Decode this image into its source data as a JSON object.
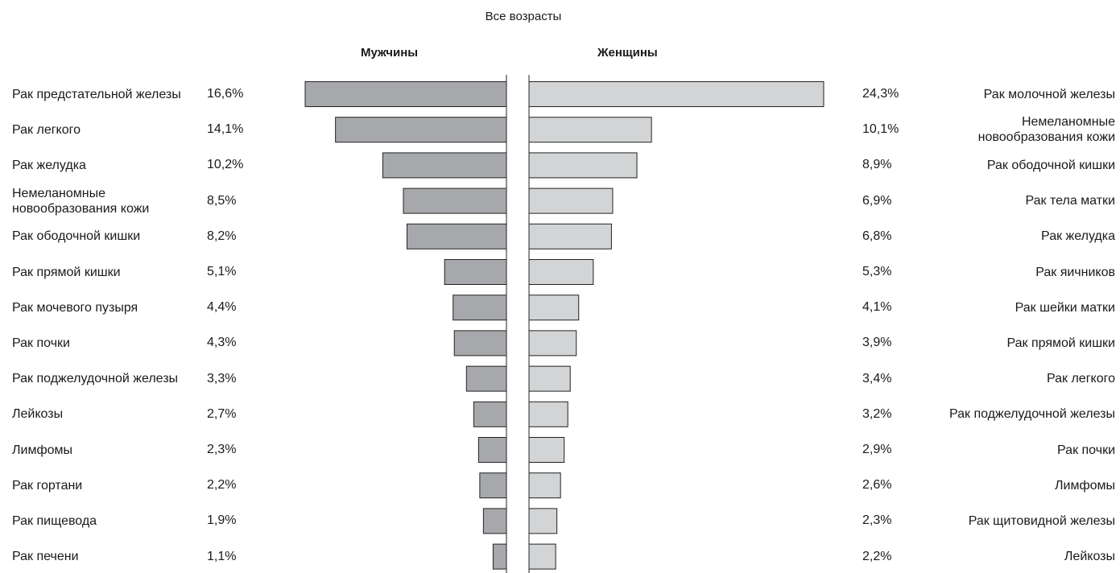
{
  "chart_data": {
    "type": "bar",
    "title": "Все возрасты",
    "series": [
      {
        "name": "Мужчины",
        "color": "#a7a8ab",
        "unit": "%",
        "categories": [
          "Рак предстательной железы",
          "Рак легкого",
          "Рак желудка",
          "Немеланомные новообразования кожи",
          "Рак ободочной кишки",
          "Рак прямой кишки",
          "Рак мочевого пузыря",
          "Рак почки",
          "Рак поджелудочной железы",
          "Лейкозы",
          "Лимфомы",
          "Рак гортани",
          "Рак пищевода",
          "Рак печени"
        ],
        "values": [
          16.6,
          14.1,
          10.2,
          8.5,
          8.2,
          5.1,
          4.4,
          4.3,
          3.3,
          2.7,
          2.3,
          2.2,
          1.9,
          1.1
        ],
        "value_labels": [
          "16,6%",
          "14,1%",
          "10,2%",
          "8,5%",
          "8,2%",
          "5,1%",
          "4,4%",
          "4,3%",
          "3,3%",
          "2,7%",
          "2,3%",
          "2,2%",
          "1,9%",
          "1,1%"
        ]
      },
      {
        "name": "Женщины",
        "color": "#d3d4d6",
        "unit": "%",
        "categories": [
          "Рак молочной железы",
          "Немеланомные новообразования кожи",
          "Рак ободочной кишки",
          "Рак тела матки",
          "Рак желудка",
          "Рак яичников",
          "Рак шейки матки",
          "Рак прямой кишки",
          "Рак легкого",
          "Рак поджелудочной железы",
          "Рак почки",
          "Лимфомы",
          "Рак щитовидной железы",
          "Лейкозы"
        ],
        "values": [
          24.3,
          10.1,
          8.9,
          6.9,
          6.8,
          5.3,
          4.1,
          3.9,
          3.4,
          3.2,
          2.9,
          2.6,
          2.3,
          2.2
        ],
        "value_labels": [
          "24,3%",
          "10,1%",
          "8,9%",
          "6,9%",
          "6,8%",
          "5,3%",
          "4,1%",
          "3,9%",
          "3,4%",
          "3,2%",
          "2,9%",
          "2,6%",
          "2,3%",
          "2,2%"
        ]
      }
    ],
    "xlim": [
      0,
      24.3
    ],
    "grid": false,
    "legend": "none"
  }
}
